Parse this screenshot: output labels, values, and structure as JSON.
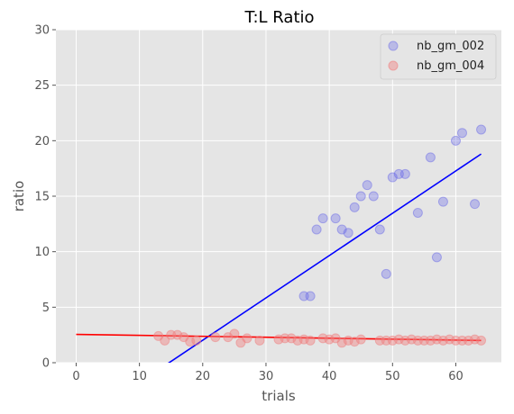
{
  "chart_data": {
    "type": "scatter",
    "title": "T:L Ratio",
    "xlabel": "trials",
    "ylabel": "ratio",
    "xlim": [
      -3.2,
      67.2
    ],
    "ylim": [
      0,
      30
    ],
    "xticks": [
      0,
      10,
      20,
      30,
      40,
      50,
      60
    ],
    "yticks": [
      0,
      5,
      10,
      15,
      20,
      25,
      30
    ],
    "grid": true,
    "legend_position": "top-right",
    "series": [
      {
        "name": "nb_gm_002",
        "color": "#6b6be8",
        "points": [
          [
            36,
            6
          ],
          [
            37,
            6
          ],
          [
            38,
            12
          ],
          [
            39,
            13
          ],
          [
            41,
            13
          ],
          [
            42,
            12
          ],
          [
            43,
            11.7
          ],
          [
            44,
            14
          ],
          [
            45,
            15
          ],
          [
            46,
            16
          ],
          [
            47,
            15
          ],
          [
            48,
            12
          ],
          [
            49,
            8
          ],
          [
            50,
            16.7
          ],
          [
            51,
            17
          ],
          [
            52,
            17
          ],
          [
            54,
            13.5
          ],
          [
            56,
            18.5
          ],
          [
            57,
            9.5
          ],
          [
            58,
            14.5
          ],
          [
            60,
            20
          ],
          [
            61,
            20.7
          ],
          [
            63,
            14.3
          ],
          [
            64,
            21
          ]
        ],
        "fit": {
          "x": [
            0,
            64
          ],
          "y": [
            -5.6,
            18.8
          ],
          "color": "#0000ff"
        }
      },
      {
        "name": "nb_gm_004",
        "color": "#f08080",
        "points": [
          [
            13,
            2.4
          ],
          [
            14,
            2.0
          ],
          [
            15,
            2.5
          ],
          [
            16,
            2.5
          ],
          [
            17,
            2.3
          ],
          [
            18,
            1.9
          ],
          [
            19,
            2.0
          ],
          [
            22,
            2.3
          ],
          [
            24,
            2.3
          ],
          [
            25,
            2.6
          ],
          [
            26,
            1.8
          ],
          [
            27,
            2.2
          ],
          [
            29,
            2.0
          ],
          [
            32,
            2.1
          ],
          [
            33,
            2.2
          ],
          [
            34,
            2.2
          ],
          [
            35,
            2.0
          ],
          [
            36,
            2.1
          ],
          [
            37,
            2.0
          ],
          [
            39,
            2.2
          ],
          [
            40,
            2.1
          ],
          [
            41,
            2.2
          ],
          [
            42,
            1.8
          ],
          [
            43,
            2.0
          ],
          [
            44,
            1.9
          ],
          [
            45,
            2.1
          ],
          [
            48,
            2.0
          ],
          [
            49,
            2.0
          ],
          [
            50,
            2.0
          ],
          [
            51,
            2.1
          ],
          [
            52,
            2.0
          ],
          [
            53,
            2.1
          ],
          [
            54,
            2.0
          ],
          [
            55,
            2.0
          ],
          [
            56,
            2.0
          ],
          [
            57,
            2.1
          ],
          [
            58,
            2.0
          ],
          [
            59,
            2.1
          ],
          [
            60,
            2.0
          ],
          [
            61,
            2.0
          ],
          [
            62,
            2.0
          ],
          [
            63,
            2.1
          ],
          [
            64,
            2.0
          ]
        ],
        "fit": {
          "x": [
            0,
            64
          ],
          "y": [
            2.55,
            2.0
          ],
          "color": "#ff0000"
        }
      }
    ]
  }
}
